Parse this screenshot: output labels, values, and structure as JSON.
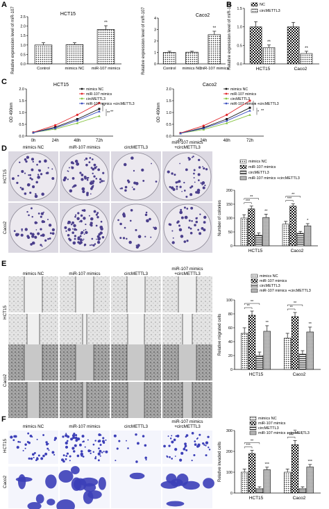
{
  "panels": {
    "A": "A",
    "B": "B",
    "C": "C",
    "D": "D",
    "E": "E",
    "F": "F"
  },
  "stars": {
    "double": "**",
    "single": "*",
    "triple": "***"
  },
  "chart_data": [
    {
      "id": "A1",
      "type": "bar",
      "title": "HCT15",
      "ylabel": "Relative expression level of miR-107",
      "categories": [
        "Control",
        "mimics NC",
        "miR-107 mimics"
      ],
      "values": [
        1.0,
        1.02,
        1.82
      ],
      "errors": [
        0.12,
        0.1,
        0.2
      ],
      "ylim": [
        0,
        2.5
      ],
      "yticks": [
        "0.0",
        "0.5",
        "1.0",
        "1.5",
        "2.0",
        "2.5"
      ],
      "sig": [
        "",
        "",
        "**"
      ]
    },
    {
      "id": "A2",
      "type": "bar",
      "title": "Caco2",
      "ylabel": "Relative expression level of miR-107",
      "categories": [
        "Control",
        "mimics NC",
        "miR-107 mimics"
      ],
      "values": [
        1.0,
        1.02,
        2.55
      ],
      "errors": [
        0.1,
        0.08,
        0.3
      ],
      "ylim": [
        0,
        4
      ],
      "yticks": [
        "0",
        "1",
        "2",
        "3",
        "4"
      ],
      "sig": [
        "",
        "",
        "**"
      ]
    },
    {
      "id": "B",
      "type": "bar",
      "ylabel": "Relative expression level of miR-107",
      "categories": [
        "HCT15",
        "Caco2"
      ],
      "series": [
        {
          "name": "NC",
          "values": [
            1.0,
            1.0
          ],
          "errors": [
            0.14,
            0.12
          ]
        },
        {
          "name": "circMETTL3",
          "values": [
            0.44,
            0.28
          ],
          "errors": [
            0.07,
            0.06
          ]
        }
      ],
      "ylim": [
        0,
        1.5
      ],
      "yticks": [
        "0.0",
        "0.5",
        "1.0",
        "1.5"
      ],
      "sig": [
        "**",
        "**"
      ]
    },
    {
      "id": "C1",
      "type": "line",
      "title": "HCT15",
      "ylabel": "OD 490nm",
      "x": [
        "0h",
        "24h",
        "48h",
        "72h"
      ],
      "series": [
        {
          "name": "mimics NC",
          "values": [
            0.15,
            0.38,
            0.72,
            1.15
          ]
        },
        {
          "name": "miR-107 mimics",
          "values": [
            0.16,
            0.46,
            0.9,
            1.4
          ]
        },
        {
          "name": "circMETTL3",
          "values": [
            0.15,
            0.3,
            0.55,
            0.85
          ]
        },
        {
          "name": "miR-107 mimics +circMETTL3",
          "values": [
            0.15,
            0.34,
            0.66,
            1.05
          ]
        }
      ],
      "ylim": [
        0,
        2
      ],
      "yticks": [
        "0.0",
        "0.5",
        "1.0",
        "1.5",
        "2.0"
      ],
      "sig": [
        "*",
        "**",
        "**"
      ]
    },
    {
      "id": "C2",
      "type": "line",
      "title": "Caco2",
      "ylabel": "OD 490nm",
      "x": [
        "0h",
        "24h",
        "48h",
        "72h"
      ],
      "series": [
        {
          "name": "mimics NC",
          "values": [
            0.12,
            0.36,
            0.72,
            1.2
          ]
        },
        {
          "name": "miR-107 mimics",
          "values": [
            0.13,
            0.44,
            0.9,
            1.5
          ]
        },
        {
          "name": "circMETTL3",
          "values": [
            0.12,
            0.28,
            0.55,
            0.9
          ]
        },
        {
          "name": "miR-107 mimics +circMETTL3",
          "values": [
            0.12,
            0.33,
            0.65,
            1.08
          ]
        }
      ],
      "ylim": [
        0,
        2
      ],
      "yticks": [
        "0.0",
        "0.5",
        "1.0",
        "1.5",
        "2.0"
      ],
      "sig": [
        "*",
        "*",
        "**"
      ]
    },
    {
      "id": "D",
      "type": "bar",
      "ylabel": "Number of colonies",
      "categories": [
        "HCT15",
        "Caco2"
      ],
      "series": [
        {
          "name": "mimics NC",
          "values": [
            100,
            78
          ],
          "errors": [
            12,
            10
          ]
        },
        {
          "name": "miR-107 mimics",
          "values": [
            133,
            143
          ],
          "errors": [
            10,
            8
          ]
        },
        {
          "name": "circMETTL3",
          "values": [
            38,
            45
          ],
          "errors": [
            8,
            7
          ]
        },
        {
          "name": "miR-107 mimics +circMETTL3",
          "values": [
            102,
            72
          ],
          "errors": [
            12,
            8
          ]
        }
      ],
      "ylim": [
        0,
        200
      ],
      "yticks": [
        "0",
        "50",
        "100",
        "150",
        "200"
      ],
      "sig": [
        "***",
        "**",
        "***",
        "*"
      ]
    },
    {
      "id": "E",
      "type": "bar",
      "ylabel": "Relative migrated cells",
      "categories": [
        "HCT15",
        "Caco2"
      ],
      "series": [
        {
          "name": "mimics NC",
          "values": [
            52,
            45
          ],
          "errors": [
            8,
            7
          ]
        },
        {
          "name": "miR-107 mimics",
          "values": [
            78,
            76
          ],
          "errors": [
            6,
            6
          ]
        },
        {
          "name": "circMETTL3",
          "values": [
            20,
            22
          ],
          "errors": [
            5,
            5
          ]
        },
        {
          "name": "miR-107 mimics +circMETTL3",
          "values": [
            55,
            54
          ],
          "errors": [
            8,
            7
          ]
        }
      ],
      "ylim": [
        0,
        100
      ],
      "yticks": [
        "0",
        "20",
        "40",
        "60",
        "80",
        "100"
      ],
      "sig": [
        "**",
        "**",
        "**",
        "**"
      ]
    },
    {
      "id": "F",
      "type": "bar",
      "ylabel": "Relative invaded cells",
      "categories": [
        "HCT15",
        "Caco2"
      ],
      "series": [
        {
          "name": "mimics NC",
          "values": [
            100,
            100
          ],
          "errors": [
            15,
            15
          ]
        },
        {
          "name": "miR-107 mimics",
          "values": [
            190,
            232
          ],
          "errors": [
            15,
            20
          ]
        },
        {
          "name": "circMETTL3",
          "values": [
            22,
            22
          ],
          "errors": [
            8,
            8
          ]
        },
        {
          "name": "miR-107 mimics +circMETTL3",
          "values": [
            112,
            125
          ],
          "errors": [
            12,
            12
          ]
        }
      ],
      "ylim": [
        0,
        300
      ],
      "yticks": [
        "0",
        "100",
        "200",
        "300"
      ],
      "sig": [
        "***",
        "***",
        "***",
        "***"
      ]
    }
  ],
  "image_grids": {
    "D": {
      "cols": [
        "mimics NC",
        "miR-107 mimics",
        "circMETTL3",
        "miR-107 mimics +circMETTL3"
      ],
      "rows": [
        "HCT15",
        "Caco2"
      ]
    },
    "E": {
      "cols": [
        "mimics NC",
        "miR-107 mimics",
        "circMETTL3",
        "miR-107 mimics +circMETTL3"
      ],
      "rows": [
        "HCT15",
        "Caco2"
      ]
    },
    "F": {
      "cols": [
        "mimics NC",
        "miR-107 mimics",
        "circMETTL3",
        "miR-107 mimics +circMETTL3"
      ],
      "rows": [
        "HCT15",
        "Caco2"
      ]
    }
  },
  "colors": {
    "ink": "#111111",
    "dish": "#ece9ef",
    "colony": "#4b3f8c",
    "wound": "#cfcfcf",
    "invade": "#3c3fb8",
    "lineNC": "#111111",
    "lineMimics": "#e2262b",
    "lineCirc": "#86c440",
    "lineCombo": "#3a4fbf"
  }
}
